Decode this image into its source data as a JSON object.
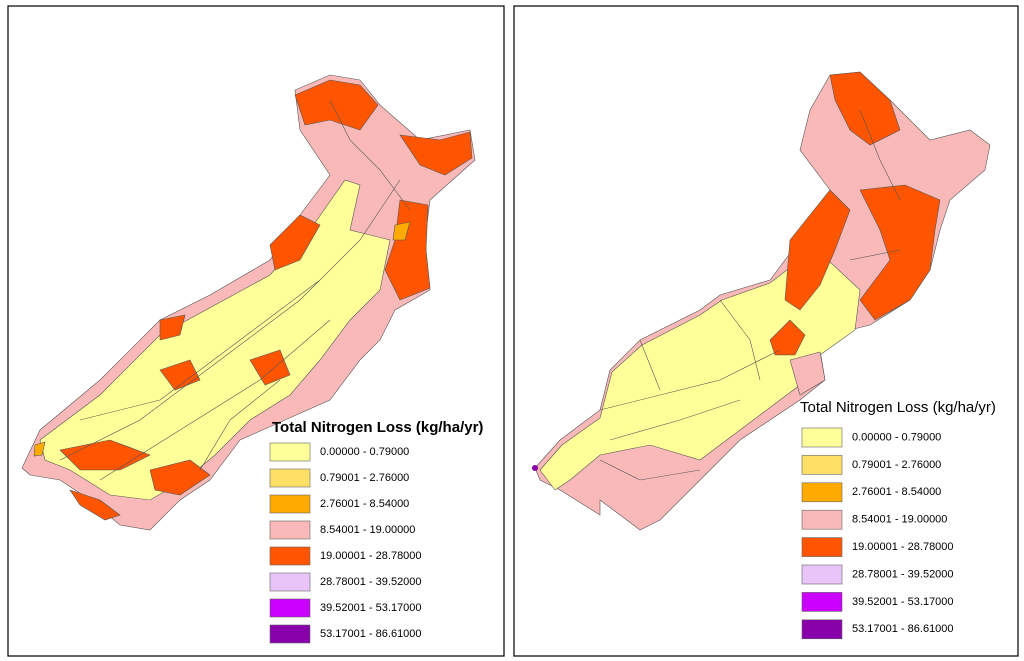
{
  "panels": [
    {
      "legend": {
        "title": "Total Nitrogen Loss (kg/ha/yr)",
        "items": [
          {
            "label": "0.00000 - 0.79000",
            "color": "#ffff99"
          },
          {
            "label": "0.79001 - 2.76000",
            "color": "#ffe066"
          },
          {
            "label": "2.76001 - 8.54000",
            "color": "#ffaa00"
          },
          {
            "label": "8.54001 - 19.00000",
            "color": "#f9b9b9"
          },
          {
            "label": "19.00001 - 28.78000",
            "color": "#ff5500"
          },
          {
            "label": "28.78001 - 39.52000",
            "color": "#e8c4f8"
          },
          {
            "label": "39.52001 - 53.17000",
            "color": "#cc00ff"
          },
          {
            "label": "53.17001 - 86.61000",
            "color": "#8800aa"
          }
        ]
      }
    },
    {
      "legend": {
        "title": "Total Nitrogen Loss (kg/ha/yr)",
        "items": [
          {
            "label": "0.00000 - 0.79000",
            "color": "#ffff99"
          },
          {
            "label": "0.79001 - 2.76000",
            "color": "#ffe066"
          },
          {
            "label": "2.76001 - 8.54000",
            "color": "#ffaa00"
          },
          {
            "label": "8.54001 - 19.00000",
            "color": "#f9b9b9"
          },
          {
            "label": "19.00001 - 28.78000",
            "color": "#ff5500"
          },
          {
            "label": "28.78001 - 39.52000",
            "color": "#e8c4f8"
          },
          {
            "label": "39.52001 - 53.17000",
            "color": "#cc00ff"
          },
          {
            "label": "53.17001 - 86.61000",
            "color": "#8800aa"
          }
        ]
      }
    }
  ]
}
